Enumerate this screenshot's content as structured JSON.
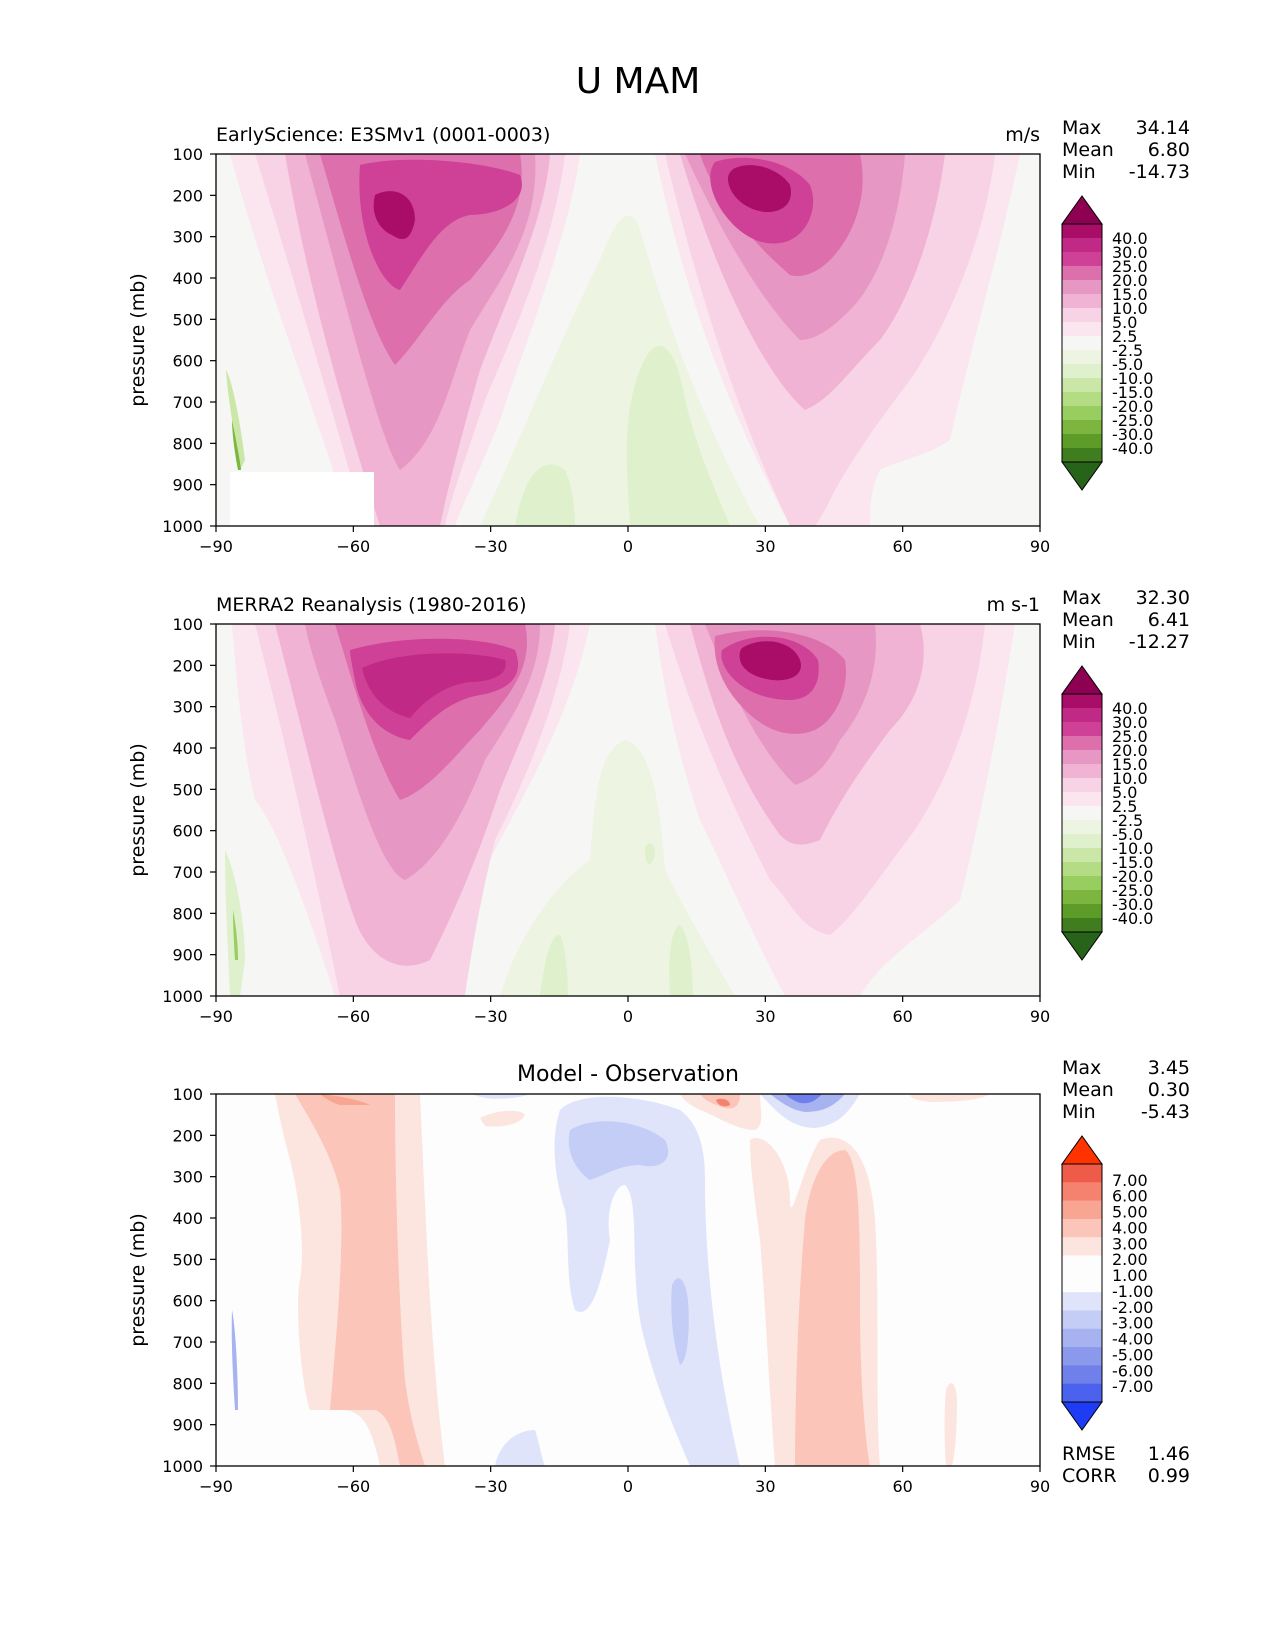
{
  "figure": {
    "title": "U MAM"
  },
  "colors": {
    "pos": [
      "#f6f6f4",
      "#fbe6f0",
      "#f7d3e5",
      "#f0b3d3",
      "#e797c4",
      "#dd6fac",
      "#cf4196",
      "#c02a86",
      "#a90d68",
      "#8e0152"
    ],
    "neg": [
      "#edf4e2",
      "#dff0cc",
      "#cbe7a7",
      "#b3dc85",
      "#98cd5f",
      "#7cb63e",
      "#5e9c2a",
      "#3f7d1f",
      "#276419"
    ],
    "diffPos": [
      "#fde5df",
      "#fbc6b9",
      "#f8a594",
      "#f4826e",
      "#ee5b49",
      "#ff3300"
    ],
    "diffNeg": [
      "#dfe4fb",
      "#c3cdf6",
      "#a6b3f0",
      "#8a99ec",
      "#6f80ea",
      "#4a62ee",
      "#1e3cf5"
    ],
    "white": "#fdfdfd"
  },
  "chart_data": [
    {
      "type": "contour",
      "id": "panel-model",
      "title_left": "EarlyScience: E3SMv1 (0001-0003)",
      "units": "m/s",
      "ylabel": "pressure (mb)",
      "xlim": [
        -90,
        90
      ],
      "ylim": [
        1000,
        100
      ],
      "xticks": [
        "−90",
        "−60",
        "−30",
        "0",
        "30",
        "60",
        "90"
      ],
      "xtick_values": [
        -90,
        -60,
        -30,
        0,
        30,
        60,
        90
      ],
      "yticks": [
        "100",
        "200",
        "300",
        "400",
        "500",
        "600",
        "700",
        "800",
        "900",
        "1000"
      ],
      "ytick_values": [
        100,
        200,
        300,
        400,
        500,
        600,
        700,
        800,
        900,
        1000
      ],
      "stats": [
        {
          "label": "Max",
          "value": "34.14"
        },
        {
          "label": "Mean",
          "value": "6.80"
        },
        {
          "label": "Min",
          "value": "-14.73"
        }
      ],
      "colorbar_levels": [
        "40.0",
        "30.0",
        "25.0",
        "20.0",
        "15.0",
        "10.0",
        "5.0",
        "2.5",
        "-2.5",
        "-5.0",
        "-10.0",
        "-15.0",
        "-20.0",
        "-25.0",
        "-30.0",
        "-40.0"
      ],
      "jets": [
        {
          "lat": -52,
          "p": 220,
          "max": 34
        },
        {
          "lat": 29,
          "p": 190,
          "max": 32
        }
      ],
      "missing_region": {
        "lat": [
          -90,
          -55
        ],
        "p": [
          870,
          1000
        ]
      }
    },
    {
      "type": "contour",
      "id": "panel-obs",
      "title_left": "MERRA2 Reanalysis (1980-2016)",
      "units": "m s-1",
      "ylabel": "pressure (mb)",
      "xlim": [
        -90,
        90
      ],
      "ylim": [
        1000,
        100
      ],
      "xticks": [
        "−90",
        "−60",
        "−30",
        "0",
        "30",
        "60",
        "90"
      ],
      "xtick_values": [
        -90,
        -60,
        -30,
        0,
        30,
        60,
        90
      ],
      "yticks": [
        "100",
        "200",
        "300",
        "400",
        "500",
        "600",
        "700",
        "800",
        "900",
        "1000"
      ],
      "ytick_values": [
        100,
        200,
        300,
        400,
        500,
        600,
        700,
        800,
        900,
        1000
      ],
      "stats": [
        {
          "label": "Max",
          "value": "32.30"
        },
        {
          "label": "Mean",
          "value": "6.41"
        },
        {
          "label": "Min",
          "value": "-12.27"
        }
      ],
      "colorbar_levels": [
        "40.0",
        "30.0",
        "25.0",
        "20.0",
        "15.0",
        "10.0",
        "5.0",
        "2.5",
        "-2.5",
        "-5.0",
        "-10.0",
        "-15.0",
        "-20.0",
        "-25.0",
        "-30.0",
        "-40.0"
      ],
      "jets": [
        {
          "lat": -50,
          "p": 230,
          "max": 31
        },
        {
          "lat": 30,
          "p": 190,
          "max": 32
        }
      ]
    },
    {
      "type": "contour",
      "id": "panel-diff",
      "title_center": "Model - Observation",
      "ylabel": "pressure (mb)",
      "xlim": [
        -90,
        90
      ],
      "ylim": [
        1000,
        100
      ],
      "xticks": [
        "−90",
        "−60",
        "−30",
        "0",
        "30",
        "60",
        "90"
      ],
      "xtick_values": [
        -90,
        -60,
        -30,
        0,
        30,
        60,
        90
      ],
      "yticks": [
        "100",
        "200",
        "300",
        "400",
        "500",
        "600",
        "700",
        "800",
        "900",
        "1000"
      ],
      "ytick_values": [
        100,
        200,
        300,
        400,
        500,
        600,
        700,
        800,
        900,
        1000
      ],
      "stats": [
        {
          "label": "Max",
          "value": "3.45"
        },
        {
          "label": "Mean",
          "value": "0.30"
        },
        {
          "label": "Min",
          "value": "-5.43"
        }
      ],
      "colorbar_levels": [
        "7.00",
        "6.00",
        "5.00",
        "4.00",
        "3.00",
        "2.00",
        "1.00",
        "-1.00",
        "-2.00",
        "-3.00",
        "-4.00",
        "-5.00",
        "-6.00",
        "-7.00"
      ],
      "metrics": [
        {
          "label": "RMSE",
          "value": "1.46"
        },
        {
          "label": "CORR",
          "value": "0.99"
        }
      ]
    }
  ]
}
